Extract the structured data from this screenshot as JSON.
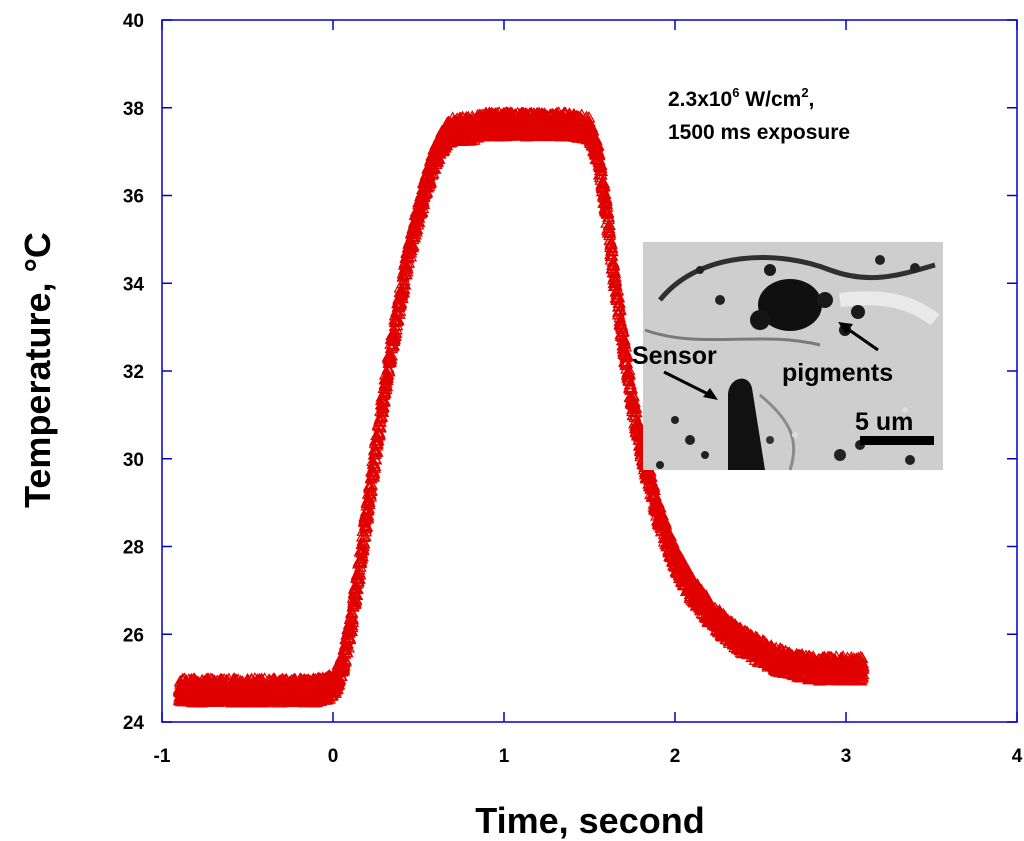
{
  "chart_data": {
    "type": "scatter",
    "title": "",
    "xlabel": "Time, second",
    "ylabel": "Temperature, °C",
    "xlim": [
      -1,
      4
    ],
    "ylim": [
      24,
      40
    ],
    "xticks": [
      "-1",
      "0",
      "1",
      "2",
      "3",
      "4"
    ],
    "yticks": [
      "24",
      "26",
      "28",
      "30",
      "32",
      "34",
      "36",
      "38",
      "40"
    ],
    "grid": false,
    "marker": "open-triangle",
    "series_color": "#e00000",
    "annotation": {
      "line1_prefix": "2.3x10",
      "line1_exp": "6",
      "line1_unit": " W/cm",
      "line1_unit_exp": "2",
      "line1_suffix": ",",
      "line2": "1500 ms exposure"
    },
    "inset": {
      "labels": {
        "sensor": "Sensor",
        "pigments": "pigments",
        "scale": "5 um"
      }
    },
    "series": [
      {
        "x": [
          -0.9,
          -0.8,
          -0.7,
          -0.6,
          -0.5,
          -0.4,
          -0.3,
          -0.2,
          -0.1,
          0.0,
          0.05,
          0.1,
          0.15,
          0.2,
          0.25,
          0.3,
          0.35,
          0.4,
          0.45,
          0.5,
          0.55,
          0.6,
          0.65,
          0.7,
          0.75,
          0.8,
          0.9,
          1.0,
          1.1,
          1.2,
          1.3,
          1.4,
          1.5,
          1.55,
          1.6,
          1.65,
          1.7,
          1.75,
          1.8,
          1.85,
          1.9,
          1.95,
          2.0,
          2.1,
          2.2,
          2.3,
          2.4,
          2.5,
          2.6,
          2.7,
          2.8,
          2.9,
          3.0,
          3.1
        ],
        "y": [
          24.7,
          24.7,
          24.7,
          24.7,
          24.7,
          24.7,
          24.7,
          24.7,
          24.7,
          24.8,
          25.2,
          26.1,
          27.4,
          28.8,
          30.2,
          31.5,
          32.7,
          33.8,
          34.8,
          35.6,
          36.3,
          36.9,
          37.3,
          37.5,
          37.5,
          37.5,
          37.6,
          37.6,
          37.6,
          37.6,
          37.6,
          37.6,
          37.5,
          36.9,
          35.6,
          34.0,
          32.6,
          31.3,
          30.3,
          29.5,
          28.8,
          28.2,
          27.7,
          27.0,
          26.5,
          26.1,
          25.8,
          25.6,
          25.4,
          25.3,
          25.2,
          25.2,
          25.2,
          25.2
        ]
      }
    ]
  }
}
